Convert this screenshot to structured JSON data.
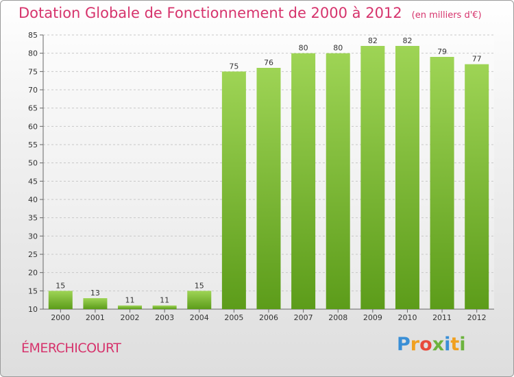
{
  "title": "Dotation Globale de Fonctionnement de 2000 à 2012",
  "unit": "(en milliers d'€)",
  "town": "ÉMERCHICOURT",
  "logo": {
    "letters": [
      "P",
      "r",
      "o",
      "x",
      "i",
      "t",
      "i"
    ],
    "colors": [
      "#3a8fd6",
      "#f0a020",
      "#e84a3c",
      "#6cb33e",
      "#3a8fd6",
      "#f0a020",
      "#6cb33e"
    ]
  },
  "colors": {
    "bar_top": "#9ed455",
    "bar_bottom": "#5c9c1a",
    "title": "#d6336c"
  },
  "chart_data": {
    "type": "bar",
    "categories": [
      "2000",
      "2001",
      "2002",
      "2003",
      "2004",
      "2005",
      "2006",
      "2007",
      "2008",
      "2009",
      "2010",
      "2011",
      "2012"
    ],
    "values": [
      15,
      13,
      11,
      11,
      15,
      75,
      76,
      80,
      80,
      82,
      82,
      79,
      77
    ],
    "ylim": [
      10,
      85
    ],
    "yticks": [
      10,
      15,
      20,
      25,
      30,
      35,
      40,
      45,
      50,
      55,
      60,
      65,
      70,
      75,
      80,
      85
    ],
    "grid": true
  }
}
